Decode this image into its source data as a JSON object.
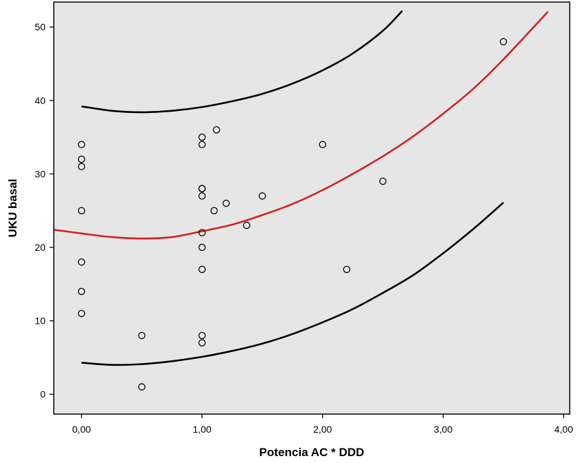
{
  "chart_data": {
    "type": "scatter",
    "title": "",
    "xlabel": "Potencia AC * DDD",
    "ylabel": "UKU basal",
    "xlim": [
      -0.23,
      4.05
    ],
    "ylim": [
      -2.7,
      53.4
    ],
    "grid": false,
    "x_ticks": [
      0,
      1,
      2,
      3,
      4
    ],
    "x_tick_labels": [
      "0,00",
      "1,00",
      "2,00",
      "3,00",
      "4,00"
    ],
    "y_ticks": [
      0,
      10,
      20,
      30,
      40,
      50
    ],
    "y_tick_labels": [
      "0",
      "10",
      "20",
      "30",
      "40",
      "50"
    ],
    "colors": {
      "plot_background": "#e6e6e6",
      "fit_line": "#d42020",
      "interval_lines": "#000000",
      "points": "#000000"
    },
    "points": [
      {
        "x": 0.0,
        "y": 34
      },
      {
        "x": 0.0,
        "y": 32
      },
      {
        "x": 0.0,
        "y": 31
      },
      {
        "x": 0.0,
        "y": 25
      },
      {
        "x": 0.0,
        "y": 18
      },
      {
        "x": 0.0,
        "y": 14
      },
      {
        "x": 0.0,
        "y": 11
      },
      {
        "x": 0.5,
        "y": 8
      },
      {
        "x": 0.5,
        "y": 1
      },
      {
        "x": 1.0,
        "y": 35
      },
      {
        "x": 1.0,
        "y": 34
      },
      {
        "x": 1.0,
        "y": 28
      },
      {
        "x": 1.0,
        "y": 28
      },
      {
        "x": 1.0,
        "y": 27
      },
      {
        "x": 1.0,
        "y": 22
      },
      {
        "x": 1.0,
        "y": 20
      },
      {
        "x": 1.0,
        "y": 17
      },
      {
        "x": 1.0,
        "y": 8
      },
      {
        "x": 1.0,
        "y": 7
      },
      {
        "x": 1.12,
        "y": 36
      },
      {
        "x": 1.1,
        "y": 25
      },
      {
        "x": 1.2,
        "y": 26
      },
      {
        "x": 1.37,
        "y": 23
      },
      {
        "x": 1.5,
        "y": 27
      },
      {
        "x": 2.0,
        "y": 34
      },
      {
        "x": 2.2,
        "y": 17
      },
      {
        "x": 2.5,
        "y": 29
      },
      {
        "x": 3.5,
        "y": 48
      }
    ],
    "series": [
      {
        "role": "fit",
        "x": [
          -0.23,
          0.0,
          0.25,
          0.5,
          0.75,
          1.0,
          1.25,
          1.5,
          1.75,
          2.0,
          2.25,
          2.5,
          2.75,
          3.0,
          3.25,
          3.5,
          3.87
        ],
        "y": [
          22.4,
          21.9,
          21.4,
          21.2,
          21.4,
          22.2,
          23.1,
          24.4,
          25.9,
          27.8,
          30.0,
          32.4,
          35.1,
          38.2,
          41.6,
          45.6,
          52.1
        ]
      },
      {
        "role": "upper",
        "x": [
          0.0,
          0.25,
          0.5,
          0.75,
          1.0,
          1.25,
          1.5,
          1.75,
          2.0,
          2.25,
          2.5,
          2.66
        ],
        "y": [
          39.2,
          38.6,
          38.4,
          38.6,
          39.1,
          39.9,
          40.9,
          42.3,
          44.1,
          46.4,
          49.5,
          52.2
        ]
      },
      {
        "role": "lower",
        "x": [
          0.0,
          0.25,
          0.5,
          0.75,
          1.0,
          1.25,
          1.5,
          1.75,
          2.0,
          2.25,
          2.5,
          2.75,
          3.0,
          3.25,
          3.5
        ],
        "y": [
          4.3,
          4.0,
          4.1,
          4.5,
          5.1,
          5.9,
          6.9,
          8.2,
          9.8,
          11.6,
          13.8,
          16.2,
          19.2,
          22.5,
          26.1
        ]
      }
    ]
  }
}
